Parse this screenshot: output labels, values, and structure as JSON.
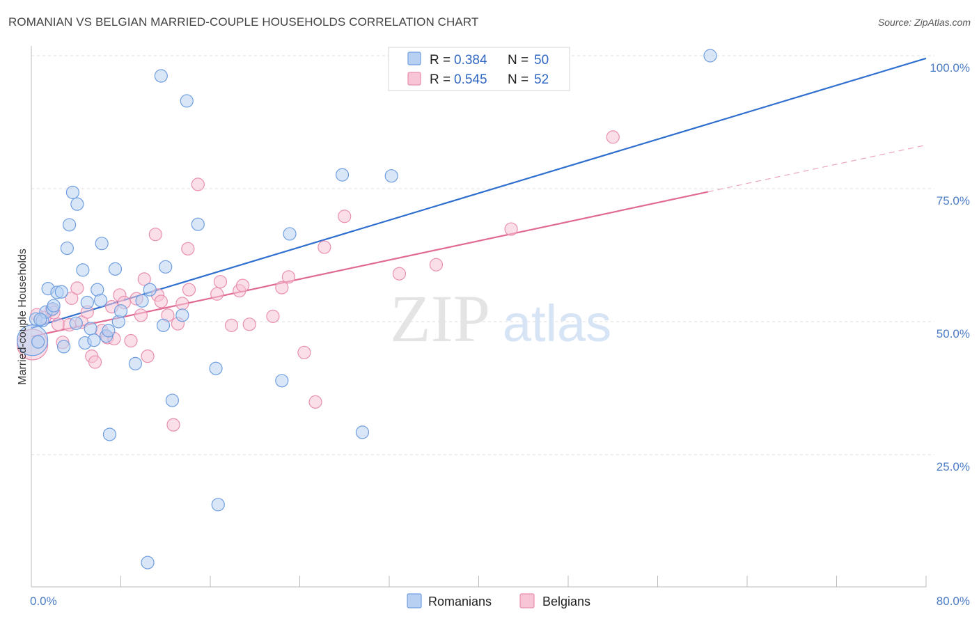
{
  "header": {
    "title": "ROMANIAN VS BELGIAN MARRIED-COUPLE HOUSEHOLDS CORRELATION CHART",
    "source": "Source: ZipAtlas.com"
  },
  "watermark": {
    "zip": "ZIP",
    "atlas": "atlas"
  },
  "legend_top": {
    "rows": [
      {
        "r_label": "R =",
        "r_value": "0.384",
        "n_label": "N =",
        "n_value": "50"
      },
      {
        "r_label": "R =",
        "r_value": "0.545",
        "n_label": "N =",
        "n_value": "52"
      }
    ]
  },
  "legend_bottom": {
    "items": [
      "Romanians",
      "Belgians"
    ]
  },
  "colors": {
    "romanian_fill": "#b8d1f3",
    "romanian_stroke": "#6f9ee0",
    "romanian_line": "#2f6fcf",
    "belgian_fill": "#f7c5d6",
    "belgian_stroke": "#e98fb0",
    "belgian_line": "#e06a93",
    "tick_text": "#4a7cc7",
    "grid": "#dddddd"
  },
  "chart_data": {
    "type": "scatter",
    "title": "ROMANIAN VS BELGIAN MARRIED-COUPLE HOUSEHOLDS CORRELATION CHART",
    "xlabel": "",
    "ylabel": "Married-couple Households",
    "xlim": [
      0,
      80
    ],
    "ylim": [
      0,
      105
    ],
    "x_tick_labels": [
      "0.0%",
      "80.0%"
    ],
    "y_ticks": [
      25,
      50,
      75,
      100
    ],
    "y_tick_labels": [
      "25.0%",
      "50.0%",
      "75.0%",
      "100.0%"
    ],
    "grid": true,
    "legend_position": "top-center",
    "series": [
      {
        "name": "Romanians",
        "trend": {
          "x": [
            0,
            80
          ],
          "y": [
            48.8,
            99.5
          ]
        },
        "points": [
          {
            "x": 0.1,
            "y": 46.5,
            "s": 22
          },
          {
            "x": 0.4,
            "y": 50.5,
            "s": 9
          },
          {
            "x": 1.0,
            "y": 50.2,
            "s": 9
          },
          {
            "x": 1.3,
            "y": 51.8,
            "s": 9
          },
          {
            "x": 1.5,
            "y": 56.2,
            "s": 9
          },
          {
            "x": 1.9,
            "y": 52.4,
            "s": 9
          },
          {
            "x": 2.0,
            "y": 53.0,
            "s": 9
          },
          {
            "x": 2.3,
            "y": 55.5,
            "s": 9
          },
          {
            "x": 2.7,
            "y": 55.6,
            "s": 9
          },
          {
            "x": 2.9,
            "y": 45.3,
            "s": 9
          },
          {
            "x": 3.2,
            "y": 63.8,
            "s": 9
          },
          {
            "x": 3.4,
            "y": 68.2,
            "s": 9
          },
          {
            "x": 3.7,
            "y": 74.3,
            "s": 9
          },
          {
            "x": 4.1,
            "y": 72.1,
            "s": 9
          },
          {
            "x": 4.0,
            "y": 49.7,
            "s": 9
          },
          {
            "x": 4.6,
            "y": 59.7,
            "s": 9
          },
          {
            "x": 4.8,
            "y": 46.0,
            "s": 9
          },
          {
            "x": 5.0,
            "y": 53.6,
            "s": 9
          },
          {
            "x": 5.3,
            "y": 48.7,
            "s": 9
          },
          {
            "x": 5.6,
            "y": 46.5,
            "s": 9
          },
          {
            "x": 5.9,
            "y": 56.0,
            "s": 9
          },
          {
            "x": 6.2,
            "y": 54.0,
            "s": 9
          },
          {
            "x": 6.3,
            "y": 64.7,
            "s": 9
          },
          {
            "x": 6.7,
            "y": 47.3,
            "s": 9
          },
          {
            "x": 6.9,
            "y": 48.3,
            "s": 9
          },
          {
            "x": 7.0,
            "y": 28.8,
            "s": 9
          },
          {
            "x": 7.5,
            "y": 59.9,
            "s": 9
          },
          {
            "x": 7.8,
            "y": 50.0,
            "s": 9
          },
          {
            "x": 8.0,
            "y": 52.0,
            "s": 9
          },
          {
            "x": 9.3,
            "y": 42.1,
            "s": 9
          },
          {
            "x": 9.9,
            "y": 53.9,
            "s": 9
          },
          {
            "x": 10.4,
            "y": 4.7,
            "s": 9
          },
          {
            "x": 10.6,
            "y": 56.0,
            "s": 9
          },
          {
            "x": 11.6,
            "y": 96.2,
            "s": 9
          },
          {
            "x": 11.8,
            "y": 49.3,
            "s": 9
          },
          {
            "x": 12.0,
            "y": 60.3,
            "s": 9
          },
          {
            "x": 12.6,
            "y": 35.2,
            "s": 9
          },
          {
            "x": 13.5,
            "y": 51.2,
            "s": 9
          },
          {
            "x": 13.9,
            "y": 91.5,
            "s": 9
          },
          {
            "x": 14.9,
            "y": 68.3,
            "s": 9
          },
          {
            "x": 16.5,
            "y": 41.2,
            "s": 9
          },
          {
            "x": 16.7,
            "y": 15.6,
            "s": 9
          },
          {
            "x": 22.4,
            "y": 38.9,
            "s": 9
          },
          {
            "x": 23.1,
            "y": 66.5,
            "s": 9
          },
          {
            "x": 27.8,
            "y": 77.6,
            "s": 9
          },
          {
            "x": 29.6,
            "y": 29.2,
            "s": 9
          },
          {
            "x": 32.2,
            "y": 77.4,
            "s": 9
          },
          {
            "x": 60.7,
            "y": 100.0,
            "s": 9
          },
          {
            "x": 0.6,
            "y": 46.2,
            "s": 9
          },
          {
            "x": 0.8,
            "y": 50.4,
            "s": 9
          }
        ]
      },
      {
        "name": "Belgians",
        "trend": {
          "x": [
            0,
            60.5
          ],
          "y": [
            47.2,
            74.4
          ]
        },
        "trend_ext": {
          "x": [
            60.5,
            80
          ],
          "y": [
            74.4,
            83.2
          ]
        },
        "points": [
          {
            "x": 0.1,
            "y": 45.7,
            "s": 22
          },
          {
            "x": 0.5,
            "y": 51.3,
            "s": 9
          },
          {
            "x": 1.2,
            "y": 50.8,
            "s": 9
          },
          {
            "x": 1.8,
            "y": 52.2,
            "s": 9
          },
          {
            "x": 2.4,
            "y": 49.5,
            "s": 9
          },
          {
            "x": 2.8,
            "y": 46.1,
            "s": 9
          },
          {
            "x": 3.4,
            "y": 49.4,
            "s": 9
          },
          {
            "x": 3.6,
            "y": 54.4,
            "s": 9
          },
          {
            "x": 4.1,
            "y": 56.3,
            "s": 9
          },
          {
            "x": 4.5,
            "y": 49.9,
            "s": 9
          },
          {
            "x": 5.0,
            "y": 51.8,
            "s": 9
          },
          {
            "x": 5.4,
            "y": 43.5,
            "s": 9
          },
          {
            "x": 5.7,
            "y": 42.4,
            "s": 9
          },
          {
            "x": 6.3,
            "y": 48.3,
            "s": 9
          },
          {
            "x": 6.8,
            "y": 47.0,
            "s": 9
          },
          {
            "x": 7.2,
            "y": 52.8,
            "s": 9
          },
          {
            "x": 7.4,
            "y": 46.8,
            "s": 9
          },
          {
            "x": 7.9,
            "y": 55.0,
            "s": 9
          },
          {
            "x": 8.3,
            "y": 53.6,
            "s": 9
          },
          {
            "x": 8.9,
            "y": 46.4,
            "s": 9
          },
          {
            "x": 9.4,
            "y": 54.3,
            "s": 9
          },
          {
            "x": 9.8,
            "y": 51.2,
            "s": 9
          },
          {
            "x": 10.1,
            "y": 58.0,
            "s": 9
          },
          {
            "x": 10.4,
            "y": 43.5,
            "s": 9
          },
          {
            "x": 11.1,
            "y": 66.4,
            "s": 9
          },
          {
            "x": 11.3,
            "y": 55.0,
            "s": 9
          },
          {
            "x": 11.6,
            "y": 53.8,
            "s": 9
          },
          {
            "x": 12.2,
            "y": 51.2,
            "s": 9
          },
          {
            "x": 12.7,
            "y": 30.6,
            "s": 9
          },
          {
            "x": 13.1,
            "y": 49.6,
            "s": 9
          },
          {
            "x": 13.5,
            "y": 53.4,
            "s": 9
          },
          {
            "x": 14.0,
            "y": 63.7,
            "s": 9
          },
          {
            "x": 14.1,
            "y": 56.0,
            "s": 9
          },
          {
            "x": 14.9,
            "y": 75.8,
            "s": 9
          },
          {
            "x": 16.6,
            "y": 55.2,
            "s": 9
          },
          {
            "x": 16.9,
            "y": 57.5,
            "s": 9
          },
          {
            "x": 17.9,
            "y": 49.3,
            "s": 9
          },
          {
            "x": 18.6,
            "y": 55.8,
            "s": 9
          },
          {
            "x": 18.9,
            "y": 56.8,
            "s": 9
          },
          {
            "x": 19.5,
            "y": 49.5,
            "s": 9
          },
          {
            "x": 21.6,
            "y": 51.0,
            "s": 9
          },
          {
            "x": 22.4,
            "y": 56.4,
            "s": 9
          },
          {
            "x": 23.0,
            "y": 58.4,
            "s": 9
          },
          {
            "x": 24.4,
            "y": 44.2,
            "s": 9
          },
          {
            "x": 25.4,
            "y": 34.9,
            "s": 9
          },
          {
            "x": 26.2,
            "y": 64.0,
            "s": 9
          },
          {
            "x": 28.0,
            "y": 69.8,
            "s": 9
          },
          {
            "x": 32.9,
            "y": 59.0,
            "s": 9
          },
          {
            "x": 36.2,
            "y": 60.7,
            "s": 9
          },
          {
            "x": 42.9,
            "y": 67.4,
            "s": 9
          },
          {
            "x": 52.0,
            "y": 84.7,
            "s": 9
          },
          {
            "x": 2.0,
            "y": 51.7,
            "s": 9
          }
        ]
      }
    ]
  }
}
